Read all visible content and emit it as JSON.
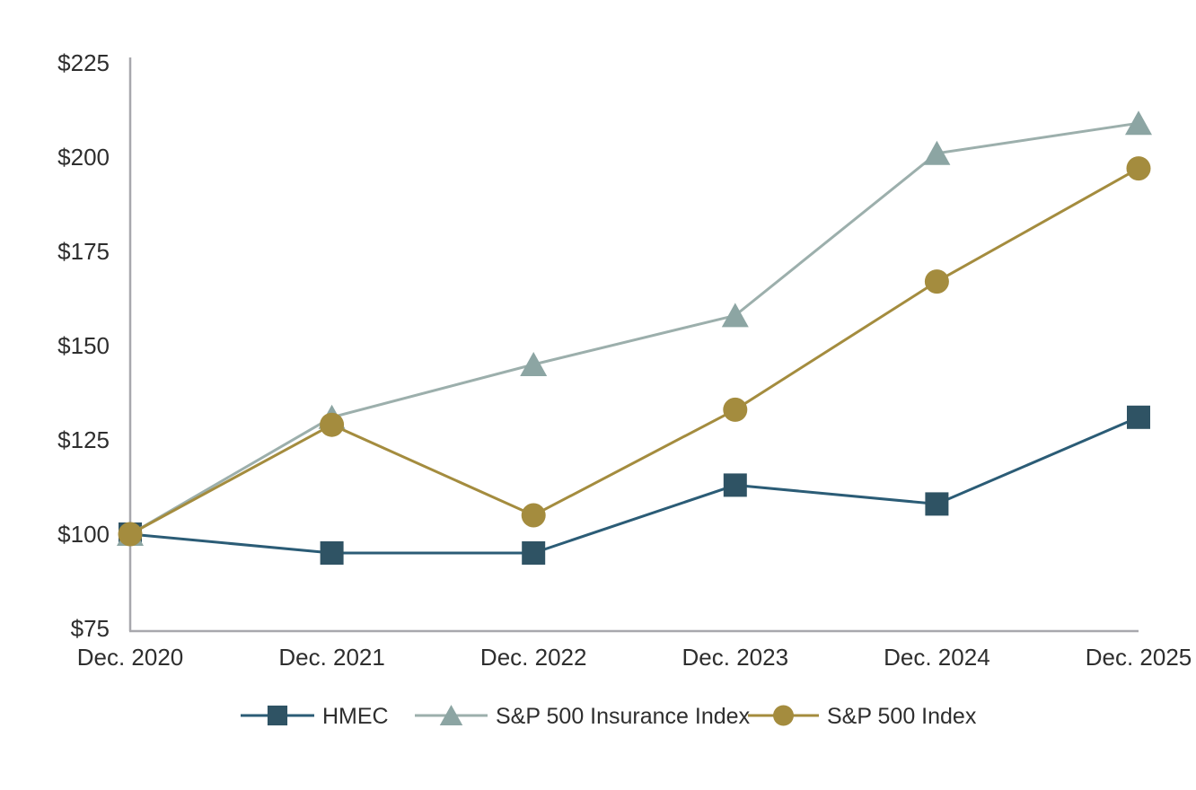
{
  "chart_data": {
    "type": "line",
    "title": "",
    "xlabel": "",
    "ylabel": "",
    "categories": [
      "Dec. 2020",
      "Dec. 2021",
      "Dec. 2022",
      "Dec. 2023",
      "Dec. 2024",
      "Dec. 2025"
    ],
    "series": [
      {
        "name": "HMEC",
        "marker": "square",
        "marker_color": "#2F5364",
        "line_color": "#2B5C76",
        "values": [
          100,
          95,
          95,
          113,
          108,
          131
        ]
      },
      {
        "name": "S&P 500 Insurance Index",
        "marker": "triangle",
        "marker_color": "#8CA5A3",
        "line_color": "#9CAFAC",
        "values": [
          100,
          131,
          145,
          158,
          201,
          209
        ]
      },
      {
        "name": "S&P 500 Index",
        "marker": "circle",
        "marker_color": "#A48C3E",
        "line_color": "#A48C3E",
        "values": [
          100,
          129,
          105,
          133,
          167,
          197
        ]
      }
    ],
    "y_ticks": [
      {
        "label": "$225",
        "value": 225
      },
      {
        "label": "$200",
        "value": 200
      },
      {
        "label": "$175",
        "value": 175
      },
      {
        "label": "$150",
        "value": 150
      },
      {
        "label": "$125",
        "value": 125
      },
      {
        "label": "$100",
        "value": 100
      },
      {
        "label": "$75",
        "value": 75
      }
    ],
    "ylim": [
      75,
      225
    ],
    "grid": false,
    "legend_position": "bottom",
    "axis_color": "#A8A8AD",
    "text_color": "#2E2E2E",
    "background_color": "#FFFFFF"
  }
}
